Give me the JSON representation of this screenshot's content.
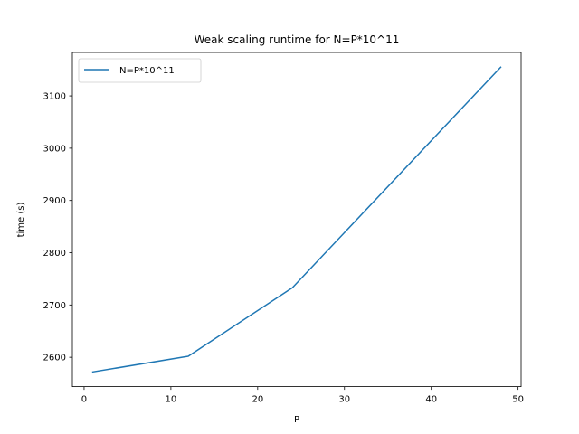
{
  "chart_data": {
    "type": "line",
    "title": "Weak scaling runtime for N=P*10^11",
    "xlabel": "P",
    "ylabel": "time (s)",
    "x": [
      1,
      12,
      24,
      48
    ],
    "series": [
      {
        "name": "N=P*10^11",
        "values": [
          2572,
          2602,
          2733,
          3155
        ],
        "color": "#1f77b4"
      }
    ],
    "xlim": [
      -1.35,
      50.35
    ],
    "ylim": [
      2543.85,
      3183.15
    ],
    "xticks": [
      0,
      10,
      20,
      30,
      40,
      50
    ],
    "yticks": [
      2600,
      2700,
      2800,
      2900,
      3000,
      3100
    ],
    "grid": false,
    "legend_position": "upper-left"
  }
}
